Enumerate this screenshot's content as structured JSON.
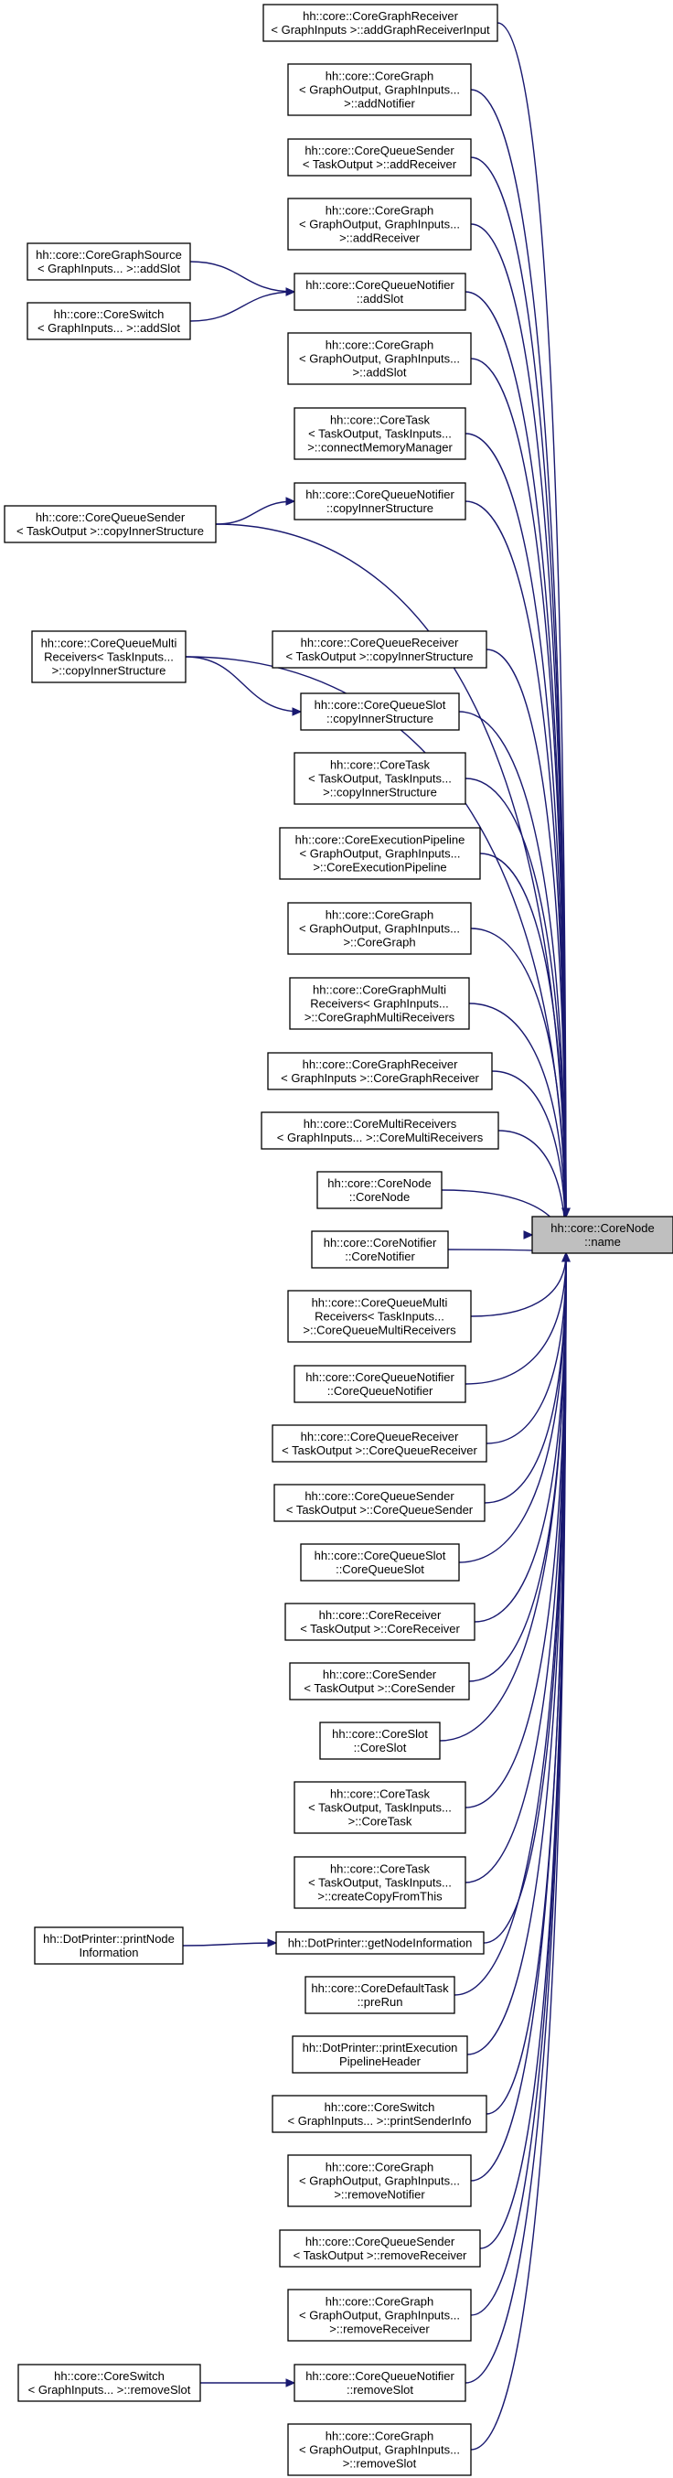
{
  "target": {
    "lines": [
      "hh::core::CoreNode",
      "::name"
    ]
  },
  "callers": [
    {
      "id": "n1",
      "lines": [
        "hh::core::CoreGraphReceiver",
        "< GraphInputs >::addGraphReceiverInput"
      ]
    },
    {
      "id": "n2",
      "lines": [
        "hh::core::CoreGraph",
        "< GraphOutput, GraphInputs...",
        ">::addNotifier"
      ]
    },
    {
      "id": "n3",
      "lines": [
        "hh::core::CoreQueueSender",
        "< TaskOutput >::addReceiver"
      ]
    },
    {
      "id": "n4",
      "lines": [
        "hh::core::CoreGraph",
        "< GraphOutput, GraphInputs...",
        ">::addReceiver"
      ]
    },
    {
      "id": "n5",
      "lines": [
        "hh::core::CoreQueueNotifier",
        "::addSlot"
      ]
    },
    {
      "id": "n6",
      "lines": [
        "hh::core::CoreGraph",
        "< GraphOutput, GraphInputs...",
        ">::addSlot"
      ]
    },
    {
      "id": "n7",
      "lines": [
        "hh::core::CoreTask",
        "< TaskOutput, TaskInputs...",
        ">::connectMemoryManager"
      ]
    },
    {
      "id": "n8",
      "lines": [
        "hh::core::CoreQueueNotifier",
        "::copyInnerStructure"
      ]
    },
    {
      "id": "n9",
      "lines": [
        "hh::core::CoreQueueSender",
        "< TaskOutput >::copyInnerStructure"
      ]
    },
    {
      "id": "n10",
      "lines": [
        "hh::core::CoreQueueMulti",
        "Receivers< TaskInputs...",
        ">::copyInnerStructure"
      ]
    },
    {
      "id": "n11",
      "lines": [
        "hh::core::CoreQueueReceiver",
        "< TaskOutput >::copyInnerStructure"
      ]
    },
    {
      "id": "n12",
      "lines": [
        "hh::core::CoreQueueSlot",
        "::copyInnerStructure"
      ]
    },
    {
      "id": "n13",
      "lines": [
        "hh::core::CoreTask",
        "< TaskOutput, TaskInputs...",
        ">::copyInnerStructure"
      ]
    },
    {
      "id": "n14",
      "lines": [
        "hh::core::CoreExecutionPipeline",
        "< GraphOutput, GraphInputs...",
        ">::CoreExecutionPipeline"
      ]
    },
    {
      "id": "n15",
      "lines": [
        "hh::core::CoreGraph",
        "< GraphOutput, GraphInputs...",
        ">::CoreGraph"
      ]
    },
    {
      "id": "n16",
      "lines": [
        "hh::core::CoreGraphMulti",
        "Receivers< GraphInputs...",
        ">::CoreGraphMultiReceivers"
      ]
    },
    {
      "id": "n17",
      "lines": [
        "hh::core::CoreGraphReceiver",
        "< GraphInputs >::CoreGraphReceiver"
      ]
    },
    {
      "id": "n18",
      "lines": [
        "hh::core::CoreMultiReceivers",
        "< GraphInputs... >::CoreMultiReceivers"
      ]
    },
    {
      "id": "n19",
      "lines": [
        "hh::core::CoreNode",
        "::CoreNode"
      ]
    },
    {
      "id": "n20",
      "lines": [
        "hh::core::CoreNotifier",
        "::CoreNotifier"
      ]
    },
    {
      "id": "n21",
      "lines": [
        "hh::core::CoreQueueMulti",
        "Receivers< TaskInputs...",
        ">::CoreQueueMultiReceivers"
      ]
    },
    {
      "id": "n22",
      "lines": [
        "hh::core::CoreQueueNotifier",
        "::CoreQueueNotifier"
      ]
    },
    {
      "id": "n23",
      "lines": [
        "hh::core::CoreQueueReceiver",
        "< TaskOutput >::CoreQueueReceiver"
      ]
    },
    {
      "id": "n24",
      "lines": [
        "hh::core::CoreQueueSender",
        "< TaskOutput >::CoreQueueSender"
      ]
    },
    {
      "id": "n25",
      "lines": [
        "hh::core::CoreQueueSlot",
        "::CoreQueueSlot"
      ]
    },
    {
      "id": "n26",
      "lines": [
        "hh::core::CoreReceiver",
        "< TaskOutput >::CoreReceiver"
      ]
    },
    {
      "id": "n27",
      "lines": [
        "hh::core::CoreSender",
        "< TaskOutput >::CoreSender"
      ]
    },
    {
      "id": "n28",
      "lines": [
        "hh::core::CoreSlot",
        "::CoreSlot"
      ]
    },
    {
      "id": "n29",
      "lines": [
        "hh::core::CoreTask",
        "< TaskOutput, TaskInputs...",
        ">::CoreTask"
      ]
    },
    {
      "id": "n30",
      "lines": [
        "hh::core::CoreTask",
        "< TaskOutput, TaskInputs...",
        ">::createCopyFromThis"
      ]
    },
    {
      "id": "n31",
      "lines": [
        "hh::DotPrinter::getNodeInformation"
      ]
    },
    {
      "id": "n32",
      "lines": [
        "hh::core::CoreDefaultTask",
        "::preRun"
      ]
    },
    {
      "id": "n33",
      "lines": [
        "hh::DotPrinter::printExecution",
        "PipelineHeader"
      ]
    },
    {
      "id": "n34",
      "lines": [
        "hh::core::CoreSwitch",
        "< GraphInputs... >::printSenderInfo"
      ]
    },
    {
      "id": "n35",
      "lines": [
        "hh::core::CoreGraph",
        "< GraphOutput, GraphInputs...",
        ">::removeNotifier"
      ]
    },
    {
      "id": "n36",
      "lines": [
        "hh::core::CoreQueueSender",
        "< TaskOutput >::removeReceiver"
      ]
    },
    {
      "id": "n37",
      "lines": [
        "hh::core::CoreGraph",
        "< GraphOutput, GraphInputs...",
        ">::removeReceiver"
      ]
    },
    {
      "id": "n38",
      "lines": [
        "hh::core::CoreQueueNotifier",
        "::removeSlot"
      ]
    },
    {
      "id": "n39",
      "lines": [
        "hh::core::CoreGraph",
        "< GraphOutput, GraphInputs...",
        ">::removeSlot"
      ]
    },
    {
      "id": "m1",
      "lines": [
        "hh::core::CoreGraphSource",
        "< GraphInputs... >::addSlot"
      ]
    },
    {
      "id": "m2",
      "lines": [
        "hh::core::CoreSwitch",
        "< GraphInputs... >::addSlot"
      ]
    },
    {
      "id": "m3",
      "lines": [
        "hh::DotPrinter::printNode",
        "Information"
      ]
    },
    {
      "id": "m4",
      "lines": [
        "hh::core::CoreSwitch",
        "< GraphInputs... >::removeSlot"
      ]
    }
  ],
  "edges": [
    [
      "n1",
      "target"
    ],
    [
      "n2",
      "target"
    ],
    [
      "n3",
      "target"
    ],
    [
      "n4",
      "target"
    ],
    [
      "n5",
      "target"
    ],
    [
      "n6",
      "target"
    ],
    [
      "n7",
      "target"
    ],
    [
      "n8",
      "target"
    ],
    [
      "n9",
      "target"
    ],
    [
      "n10",
      "target"
    ],
    [
      "n11",
      "target"
    ],
    [
      "n12",
      "target"
    ],
    [
      "n13",
      "target"
    ],
    [
      "n14",
      "target"
    ],
    [
      "n15",
      "target"
    ],
    [
      "n16",
      "target"
    ],
    [
      "n17",
      "target"
    ],
    [
      "n18",
      "target"
    ],
    [
      "n19",
      "target"
    ],
    [
      "n20",
      "target"
    ],
    [
      "n21",
      "target"
    ],
    [
      "n22",
      "target"
    ],
    [
      "n23",
      "target"
    ],
    [
      "n24",
      "target"
    ],
    [
      "n25",
      "target"
    ],
    [
      "n26",
      "target"
    ],
    [
      "n27",
      "target"
    ],
    [
      "n28",
      "target"
    ],
    [
      "n29",
      "target"
    ],
    [
      "n30",
      "target"
    ],
    [
      "n31",
      "target"
    ],
    [
      "n32",
      "target"
    ],
    [
      "n33",
      "target"
    ],
    [
      "n34",
      "target"
    ],
    [
      "n35",
      "target"
    ],
    [
      "n36",
      "target"
    ],
    [
      "n37",
      "target"
    ],
    [
      "n38",
      "target"
    ],
    [
      "n39",
      "target"
    ],
    [
      "m1",
      "n5"
    ],
    [
      "m2",
      "n5"
    ],
    [
      "n9",
      "n8"
    ],
    [
      "n10",
      "n12"
    ],
    [
      "m3",
      "n31"
    ],
    [
      "m4",
      "n38"
    ]
  ],
  "colors": {
    "edge": "#191970",
    "target_fill": "#bfbfbf",
    "node_fill": "#ffffff",
    "border": "#000000"
  }
}
